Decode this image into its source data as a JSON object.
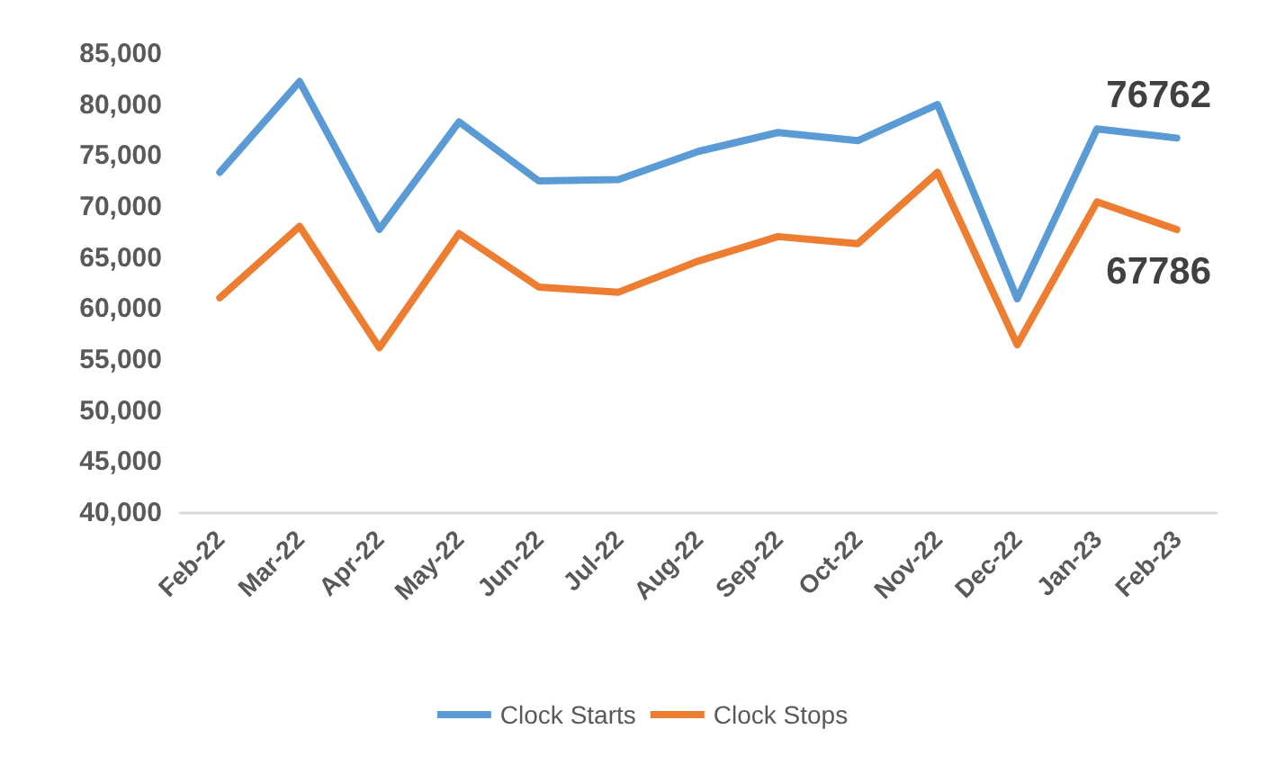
{
  "chart_data": {
    "type": "line",
    "categories": [
      "Feb-22",
      "Mar-22",
      "Apr-22",
      "May-22",
      "Jun-22",
      "Jul-22",
      "Aug-22",
      "Sep-22",
      "Oct-22",
      "Nov-22",
      "Dec-22",
      "Jan-23",
      "Feb-23"
    ],
    "series": [
      {
        "name": "Clock Starts",
        "color": "#5b9bd5",
        "values": [
          73400,
          82300,
          67800,
          78350,
          72550,
          72700,
          75450,
          77300,
          76500,
          80050,
          61000,
          77650,
          76762
        ],
        "value_labels": [
          null,
          null,
          null,
          null,
          null,
          null,
          null,
          null,
          null,
          null,
          null,
          null,
          "76762"
        ]
      },
      {
        "name": "Clock Stops",
        "color": "#ed7d31",
        "values": [
          61100,
          68100,
          56200,
          67400,
          62150,
          61650,
          64700,
          67100,
          66400,
          73400,
          56500,
          70500,
          67786
        ],
        "value_labels": [
          null,
          null,
          null,
          null,
          null,
          null,
          null,
          null,
          null,
          null,
          null,
          null,
          "67786"
        ]
      }
    ],
    "ylim": [
      40000,
      85000
    ],
    "yticks": [
      {
        "value": 40000,
        "label": "40,000"
      },
      {
        "value": 45000,
        "label": "45,000"
      },
      {
        "value": 50000,
        "label": "50,000"
      },
      {
        "value": 55000,
        "label": "55,000"
      },
      {
        "value": 60000,
        "label": "60,000"
      },
      {
        "value": 65000,
        "label": "65,000"
      },
      {
        "value": 70000,
        "label": "70,000"
      },
      {
        "value": 75000,
        "label": "75,000"
      },
      {
        "value": 80000,
        "label": "80,000"
      },
      {
        "value": 85000,
        "label": "85,000"
      }
    ],
    "grid": false,
    "legend": "bottom",
    "marker": "none",
    "line_style": "solid"
  }
}
